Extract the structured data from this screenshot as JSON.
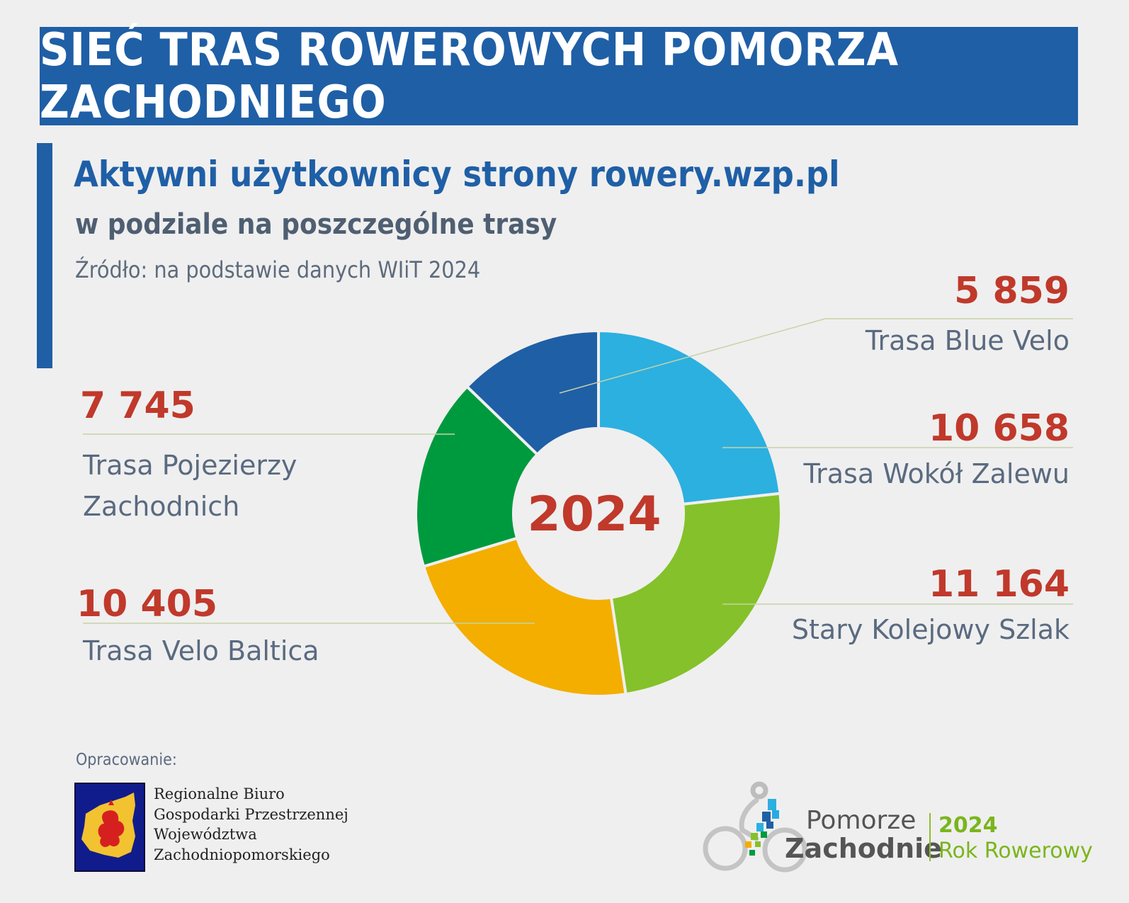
{
  "banner": {
    "title": "SIEĆ TRAS ROWEROWYCH POMORZA ZACHODNIEGO"
  },
  "header": {
    "title": "Aktywni użytkownicy strony rowery.wzp.pl",
    "subtitle": "w podziale na poszczególne trasy",
    "source": "Źródło: na podstawie danych WIiT 2024"
  },
  "chart_data": {
    "type": "pie",
    "donut": true,
    "center_label": "2024",
    "slices": [
      {
        "label_lines": [
          "Trasa Wokół Zalewu"
        ],
        "value": 10658,
        "value_text": "10 658",
        "color": "#2cb0e0"
      },
      {
        "label_lines": [
          "Stary Kolejowy Szlak"
        ],
        "value": 11164,
        "value_text": "11 164",
        "color": "#85c12a"
      },
      {
        "label_lines": [
          "Trasa Velo Baltica"
        ],
        "value": 10405,
        "value_text": "10 405",
        "color": "#f3ae00"
      },
      {
        "label_lines": [
          "Trasa Pojezierzy",
          "Zachodnich"
        ],
        "value": 7745,
        "value_text": "7 745",
        "color": "#009a3e"
      },
      {
        "label_lines": [
          "Trasa Blue Velo"
        ],
        "value": 5859,
        "value_text": "5 859",
        "color": "#1f5fa6"
      }
    ],
    "leader_line_color": "#c5d3a6"
  },
  "credits": {
    "caption": "Opracowanie:",
    "org_lines": [
      "Regionalne Biuro",
      "Gospodarki Przestrzennej",
      "Województwa",
      "Zachodniopomorskiego"
    ]
  },
  "logo": {
    "line1": "Pomorze",
    "line2": "Zachodnie",
    "year": "2024",
    "tagline": "Rok Rowerowy"
  }
}
